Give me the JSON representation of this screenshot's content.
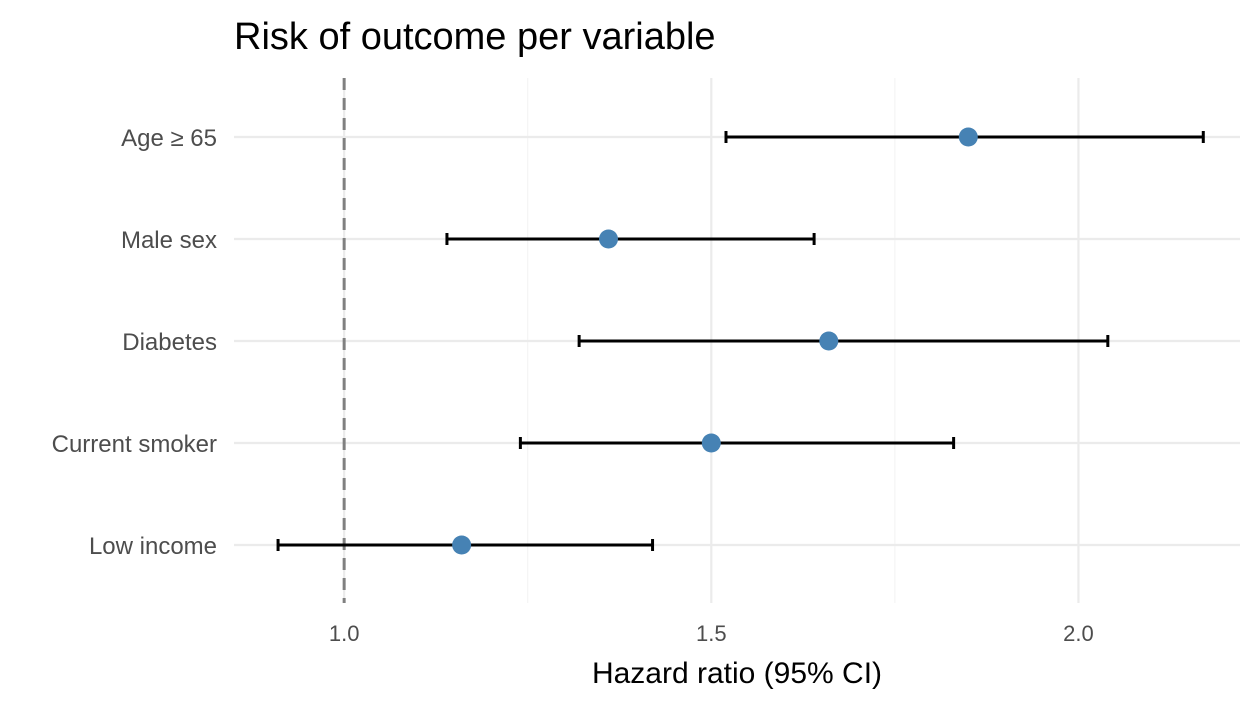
{
  "chart_data": {
    "type": "forest",
    "title": "Risk of outcome per variable",
    "xlabel": "Hazard ratio (95% CI)",
    "ylabel": "",
    "xlim": [
      0.85,
      2.22
    ],
    "x_ticks": [
      1.0,
      1.5,
      2.0
    ],
    "x_tick_labels": [
      "1.0",
      "1.5",
      "2.0"
    ],
    "x_minor_ticks": [
      1.25,
      1.75
    ],
    "reference_line": 1.0,
    "grid": true,
    "legend": "none",
    "colors": {
      "point": "#4682b4",
      "ci": "#000000",
      "reference": "#808080"
    },
    "categories": [
      "Age ≥ 65",
      "Male sex",
      "Diabetes",
      "Current smoker",
      "Low income"
    ],
    "estimates": [
      1.85,
      1.36,
      1.66,
      1.5,
      1.16
    ],
    "lower": [
      1.52,
      1.14,
      1.32,
      1.24,
      0.91
    ],
    "upper": [
      2.17,
      1.64,
      2.04,
      1.83,
      1.42
    ]
  }
}
